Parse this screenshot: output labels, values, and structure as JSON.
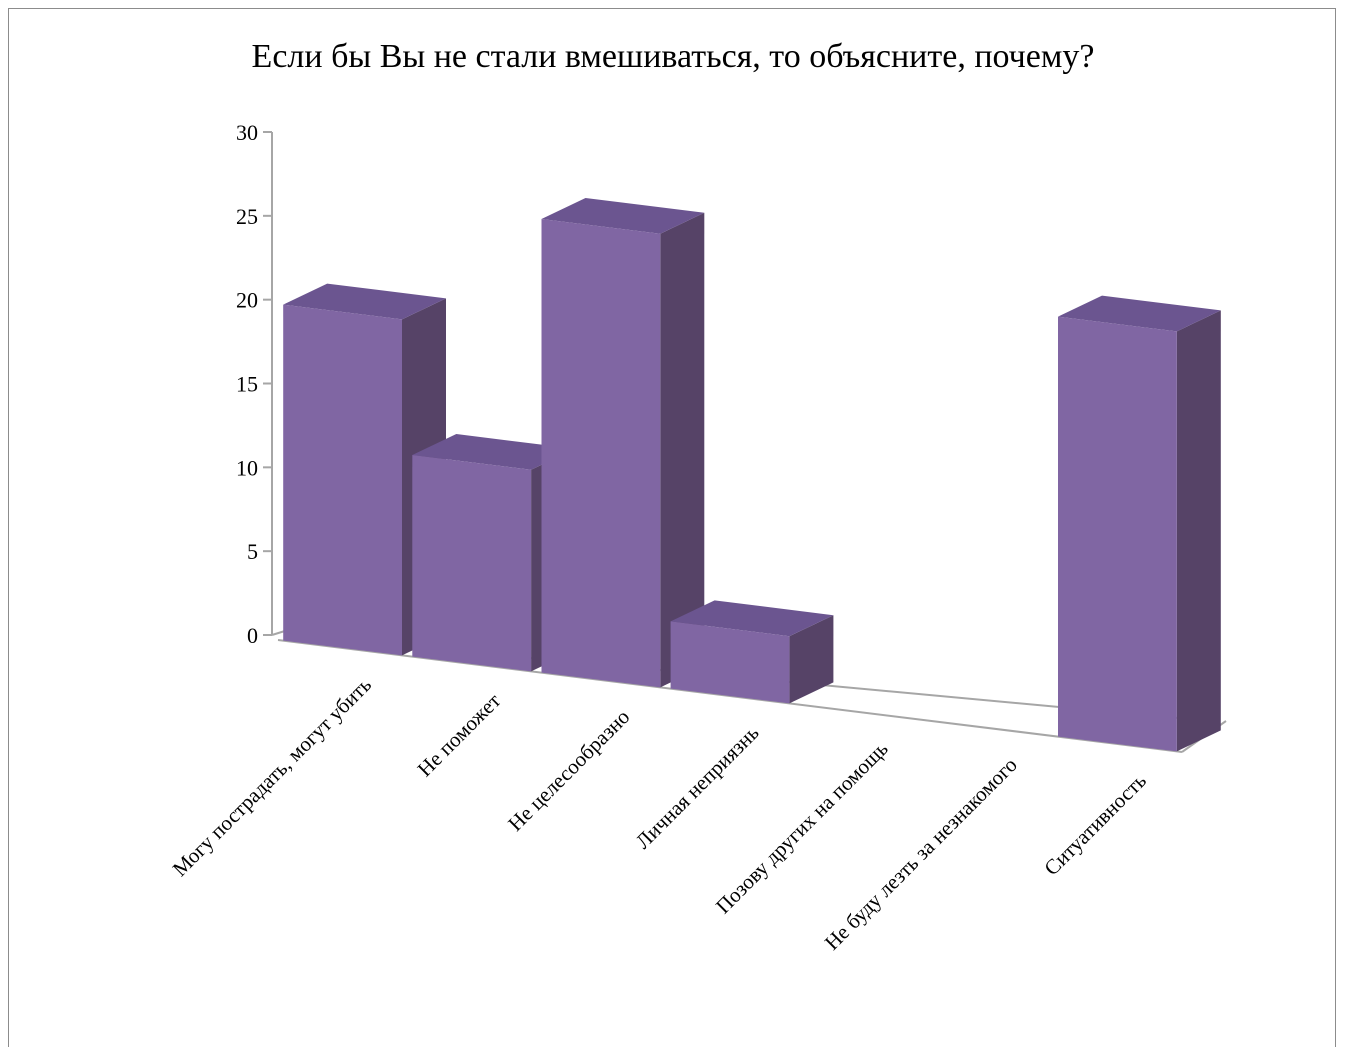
{
  "chart_data": {
    "type": "bar",
    "title": "Если бы Вы не стали вмешиваться, то объясните, почему?",
    "categories": [
      "Могу пострадать, могут убить",
      "Не поможет",
      "Не целесообразно",
      "Личная неприязнь",
      "Позову других на помощь",
      "Не буду лезть за незнакомого",
      "Ситуативность"
    ],
    "values": [
      20,
      12,
      27,
      4,
      0,
      0,
      25
    ],
    "ylim": [
      0,
      30
    ],
    "yticks": [
      0,
      5,
      10,
      15,
      20,
      25,
      30
    ],
    "xlabel": "",
    "ylabel": "",
    "grid": false,
    "legend": "none",
    "style": "3d-column",
    "colors": {
      "front": "#8066a3",
      "side": "#564367",
      "top": "#6b5590",
      "axis": "#a6a6a6"
    }
  }
}
